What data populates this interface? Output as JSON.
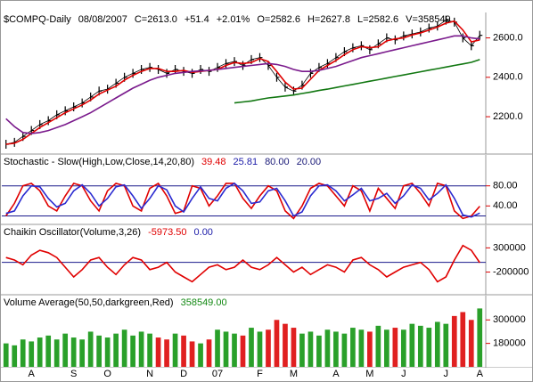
{
  "chart_data": [
    {
      "type": "price",
      "header": [
        "$COMPQ-Daily",
        "08/08/2007",
        "C=2613.0",
        "+51.4",
        "+2.01%",
        "O=2582.6",
        "H=2627.8",
        "L=2582.6",
        "V=358549"
      ],
      "header_colors": [
        "#000",
        "#000",
        "#000",
        "#000",
        "#000",
        "#000",
        "#000",
        "#000",
        "#000"
      ],
      "categories": [
        null,
        null,
        null,
        "A",
        null,
        null,
        null,
        null,
        "S",
        null,
        null,
        null,
        "O",
        null,
        null,
        null,
        null,
        "N",
        null,
        null,
        null,
        "D",
        null,
        null,
        null,
        "07",
        null,
        null,
        null,
        null,
        "F",
        null,
        null,
        null,
        "M",
        null,
        null,
        null,
        null,
        "A",
        null,
        null,
        null,
        "M",
        null,
        null,
        null,
        "J",
        null,
        null,
        null,
        null,
        "J",
        null,
        null,
        null,
        "A"
      ],
      "ylim": [
        2015,
        2720
      ],
      "yticks": [
        {
          "value": 2200,
          "label": "2200.0"
        },
        {
          "value": 2400,
          "label": "2400.0"
        },
        {
          "value": 2600,
          "label": "2600.0"
        }
      ],
      "series": [
        {
          "style": "ticks",
          "color": "#000000",
          "values": [
            2060,
            2070,
            2100,
            2130,
            2160,
            2180,
            2210,
            2230,
            2250,
            2270,
            2300,
            2330,
            2340,
            2370,
            2400,
            2420,
            2440,
            2450,
            2440,
            2420,
            2440,
            2430,
            2420,
            2440,
            2430,
            2450,
            2470,
            2480,
            2460,
            2490,
            2500,
            2460,
            2400,
            2350,
            2330,
            2360,
            2420,
            2450,
            2470,
            2500,
            2530,
            2550,
            2560,
            2540,
            2570,
            2600,
            2590,
            2610,
            2620,
            2630,
            2650,
            2660,
            2690,
            2680,
            2600,
            2560,
            2613
          ]
        },
        {
          "style": "line",
          "color": "#e00000",
          "values": [
            2060,
            2065,
            2085,
            2115,
            2145,
            2170,
            2195,
            2220,
            2240,
            2260,
            2285,
            2315,
            2335,
            2355,
            2385,
            2410,
            2430,
            2445,
            2445,
            2430,
            2430,
            2435,
            2425,
            2430,
            2435,
            2440,
            2460,
            2475,
            2470,
            2475,
            2495,
            2480,
            2430,
            2375,
            2340,
            2345,
            2390,
            2435,
            2460,
            2485,
            2515,
            2540,
            2555,
            2550,
            2555,
            2585,
            2595,
            2600,
            2615,
            2625,
            2640,
            2655,
            2675,
            2685,
            2640,
            2580,
            2590
          ]
        },
        {
          "style": "line",
          "color": "#7a1a8c",
          "values": [
            2190,
            2150,
            2120,
            2115,
            2120,
            2130,
            2145,
            2160,
            2180,
            2200,
            2220,
            2245,
            2270,
            2295,
            2320,
            2345,
            2365,
            2385,
            2400,
            2410,
            2420,
            2425,
            2430,
            2432,
            2435,
            2440,
            2445,
            2450,
            2455,
            2460,
            2465,
            2470,
            2465,
            2455,
            2440,
            2430,
            2430,
            2435,
            2445,
            2455,
            2470,
            2485,
            2500,
            2510,
            2520,
            2530,
            2540,
            2550,
            2560,
            2570,
            2580,
            2590,
            2600,
            2610,
            2610,
            2600,
            2595
          ]
        },
        {
          "style": "line",
          "color": "#117711",
          "values": [
            null,
            null,
            null,
            null,
            null,
            null,
            null,
            null,
            null,
            null,
            null,
            null,
            null,
            null,
            null,
            null,
            null,
            null,
            null,
            null,
            null,
            null,
            null,
            null,
            null,
            null,
            null,
            2270,
            2275,
            2280,
            2288,
            2295,
            2300,
            2305,
            2310,
            2318,
            2325,
            2333,
            2340,
            2348,
            2356,
            2364,
            2372,
            2380,
            2388,
            2396,
            2404,
            2412,
            2420,
            2428,
            2436,
            2444,
            2452,
            2460,
            2468,
            2476,
            2490
          ]
        }
      ]
    },
    {
      "type": "stochastic",
      "header": [
        "Stochastic - Slow(High,Low,Close,14,20,80)",
        "39.48",
        "25.81",
        "80.00",
        "20.00"
      ],
      "header_colors": [
        "#000",
        "#e00000",
        "#1a1aa8",
        "#1a1a78",
        "#1a1a78"
      ],
      "ylim": [
        5,
        138
      ],
      "yticks": [
        {
          "value": 40,
          "label": "40.00"
        },
        {
          "value": 80,
          "label": "80.00"
        }
      ],
      "hlines": [
        80,
        20
      ],
      "hline_color": "#1a1a8c",
      "series": [
        {
          "style": "line",
          "color": "#e00000",
          "values": [
            20,
            45,
            80,
            85,
            70,
            40,
            30,
            60,
            85,
            80,
            50,
            30,
            70,
            85,
            80,
            40,
            30,
            75,
            85,
            60,
            25,
            30,
            80,
            75,
            40,
            60,
            85,
            85,
            55,
            35,
            60,
            80,
            70,
            30,
            15,
            40,
            75,
            85,
            80,
            60,
            40,
            80,
            70,
            30,
            75,
            55,
            35,
            80,
            85,
            65,
            40,
            85,
            80,
            30,
            15,
            20,
            39.48
          ]
        },
        {
          "style": "line",
          "color": "#2a2ad0",
          "values": [
            25,
            30,
            60,
            80,
            78,
            55,
            38,
            45,
            70,
            82,
            65,
            40,
            55,
            78,
            82,
            60,
            35,
            55,
            80,
            72,
            40,
            28,
            55,
            78,
            55,
            50,
            75,
            85,
            70,
            45,
            48,
            70,
            75,
            50,
            20,
            28,
            60,
            80,
            82,
            70,
            50,
            62,
            75,
            50,
            55,
            65,
            45,
            60,
            82,
            75,
            52,
            65,
            82,
            55,
            22,
            18,
            25.81
          ]
        }
      ]
    },
    {
      "type": "chaikin",
      "header": [
        "Chaikin Oscillator(Volume,3,26)",
        "-5973.50",
        "0.00"
      ],
      "header_colors": [
        "#000",
        "#e00000",
        "#1a1aa8"
      ],
      "ylim": [
        -650000,
        730000
      ],
      "yticks": [
        -200000,
        300000
      ],
      "hlines": [
        0
      ],
      "hline_color": "#1a1a8c",
      "series": [
        {
          "style": "line",
          "color": "#e00000",
          "values": [
            100000,
            50000,
            -50000,
            150000,
            250000,
            200000,
            100000,
            -100000,
            -300000,
            -150000,
            50000,
            100000,
            -100000,
            -250000,
            -50000,
            100000,
            50000,
            -150000,
            -100000,
            0,
            -200000,
            -300000,
            -400000,
            -250000,
            -100000,
            -50000,
            -150000,
            -100000,
            50000,
            -100000,
            -150000,
            -50000,
            100000,
            -50000,
            -200000,
            -100000,
            -250000,
            -150000,
            -50000,
            -100000,
            -200000,
            50000,
            100000,
            -50000,
            -150000,
            -300000,
            -200000,
            -100000,
            -50000,
            0,
            -150000,
            -400000,
            -300000,
            50000,
            350000,
            250000,
            -5973.5
          ]
        }
      ]
    },
    {
      "type": "volume",
      "header": [
        "Volume Average(50,50,darkgreen,Red)",
        "358549.00"
      ],
      "header_colors": [
        "#000",
        "#118811"
      ],
      "ylim": [
        60000,
        415000
      ],
      "yticks": [
        180000,
        300000
      ],
      "up_color": "#2aa02a",
      "down_color": "#e02020",
      "series": [
        {
          "style": "bars",
          "values": [
            180000,
            170000,
            200000,
            190000,
            210000,
            220000,
            200000,
            230000,
            210000,
            200000,
            240000,
            220000,
            210000,
            230000,
            250000,
            220000,
            240000,
            230000,
            210000,
            200000,
            230000,
            220000,
            190000,
            180000,
            200000,
            250000,
            240000,
            230000,
            220000,
            260000,
            240000,
            250000,
            300000,
            280000,
            260000,
            230000,
            240000,
            220000,
            250000,
            240000,
            230000,
            260000,
            250000,
            240000,
            270000,
            250000,
            260000,
            250000,
            280000,
            270000,
            260000,
            290000,
            280000,
            320000,
            340000,
            300000,
            358549
          ]
        }
      ]
    }
  ]
}
